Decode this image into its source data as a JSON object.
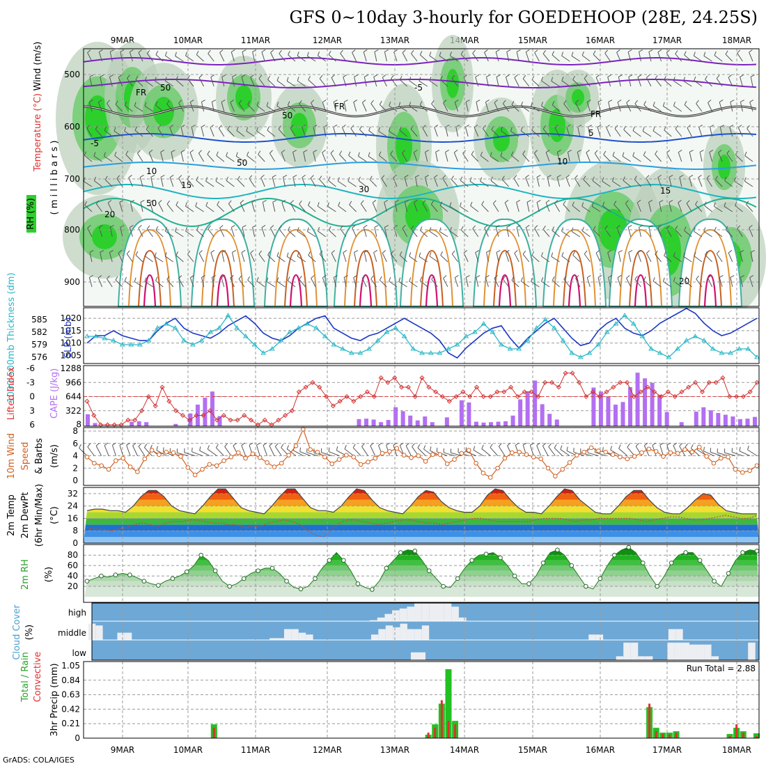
{
  "title": "GFS 0~10day 3-hourly for GOEDEHOOP (28E, 24.25S)",
  "footer": "GrADS: COLA/IGES",
  "run_total": "Run Total = 2.88",
  "colors": {
    "rh": "#2dcf2d",
    "temp": "#7b22c0",
    "wind": "#d06020",
    "cape": "#b36ff2",
    "slp": "#1a35c6",
    "thick": "#29b8c8",
    "precip": "#22c022",
    "conv": "#e03030",
    "cloud": "#6ea8d6"
  },
  "chart_data": [
    {
      "type": "heatmap",
      "name": "upper",
      "x": [
        "9MAR",
        "10MAR",
        "11MAR",
        "12MAR",
        "13MAR",
        "14MAR",
        "15MAR",
        "16MAR",
        "17MAR",
        "18MAR"
      ],
      "ylabel": [
        "Wind (m/s)",
        "Temperature (°C)",
        "RH (%)",
        "( m i l l i b a r s )"
      ],
      "yticks": [
        "500",
        "600",
        "700",
        "800",
        "900"
      ],
      "contour_labels": [
        "FR",
        "FR",
        "FR",
        "-5",
        "5",
        "-5",
        "10",
        "10",
        "15",
        "15",
        "20",
        "20",
        "50",
        "50",
        "50",
        "30",
        "50"
      ]
    },
    {
      "type": "line",
      "name": "slp",
      "ylabel_left": "1000-500mb Thickness (dm)",
      "ylabel_right": "SLP (mb)",
      "yticks_left": [
        "585",
        "582",
        "579",
        "576"
      ],
      "yticks_right": [
        "1020",
        "1015",
        "1010",
        "1005"
      ],
      "series": [
        {
          "name": "SLP",
          "values": [
            1010,
            1013,
            1013,
            1015,
            1013,
            1012,
            1011,
            1011,
            1015,
            1018,
            1020,
            1016,
            1014,
            1013,
            1012,
            1014,
            1017,
            1019,
            1021,
            1018,
            1014,
            1012,
            1011,
            1013,
            1016,
            1018,
            1020,
            1021,
            1016,
            1014,
            1012,
            1011,
            1013,
            1014,
            1016,
            1018,
            1020,
            1018,
            1016,
            1014,
            1011,
            1006,
            1004,
            1008,
            1011,
            1014,
            1016,
            1017,
            1012,
            1008,
            1012,
            1015,
            1018,
            1020,
            1016,
            1012,
            1009,
            1010,
            1015,
            1018,
            1020,
            1016,
            1014,
            1013,
            1015,
            1018,
            1020,
            1022,
            1024,
            1022,
            1018,
            1015,
            1013,
            1014,
            1016,
            1018,
            1020
          ]
        },
        {
          "name": "Thickness",
          "values": [
            581,
            581,
            580.5,
            580,
            579,
            579,
            579,
            580,
            583,
            584,
            583,
            580,
            579,
            580,
            582,
            583,
            586,
            583,
            581,
            579,
            577,
            578,
            580,
            582,
            583,
            584,
            583,
            581,
            579,
            578,
            577,
            577,
            578,
            580,
            582,
            583,
            581,
            578,
            577,
            577,
            577,
            578,
            579,
            581,
            582,
            584,
            582,
            579,
            578,
            578,
            580,
            583,
            585,
            583,
            580,
            577,
            576,
            577,
            579,
            582,
            584,
            586,
            584,
            581,
            578,
            577,
            576,
            578,
            580,
            581,
            580,
            578,
            577,
            577,
            578,
            578,
            576
          ]
        }
      ]
    },
    {
      "type": "bar",
      "name": "cape",
      "ylabel_left": "Lifted Index",
      "ylabel_right": "CAPE (J/kg)",
      "yticks_left": [
        "-6",
        "-3",
        "0",
        "3",
        "6"
      ],
      "yticks_right": [
        "1288",
        "966",
        "644",
        "322",
        "8"
      ],
      "cape": [
        240,
        40,
        0,
        0,
        0,
        0,
        70,
        80,
        60,
        0,
        0,
        0,
        20,
        0,
        260,
        460,
        620,
        760,
        200,
        0,
        0,
        0,
        0,
        0,
        0,
        0,
        0,
        0,
        0,
        0,
        0,
        0,
        0,
        0,
        0,
        0,
        0,
        130,
        140,
        120,
        60,
        110,
        400,
        310,
        210,
        100,
        190,
        60,
        0,
        170,
        0,
        560,
        510,
        70,
        50,
        60,
        70,
        80,
        210,
        580,
        760,
        1010,
        470,
        250,
        120,
        0,
        0,
        0,
        0,
        850,
        760,
        640,
        460,
        520,
        860,
        1190,
        1060,
        960,
        680,
        290,
        0,
        60,
        0,
        300,
        400,
        330,
        270,
        230,
        190,
        130,
        140,
        180
      ],
      "li": [
        1,
        4,
        6,
        6,
        6,
        6,
        5,
        5,
        3,
        0,
        2,
        -2,
        1,
        3,
        4,
        5,
        4,
        4,
        3,
        5,
        4,
        5,
        5,
        4,
        5,
        6,
        5,
        6,
        5,
        4,
        3,
        -1,
        -2,
        -3,
        -2,
        0,
        2,
        1,
        0,
        1,
        0,
        -1,
        0,
        -4,
        -3,
        -4,
        -2,
        -2,
        0,
        -4,
        -2,
        -1,
        0,
        1,
        0,
        -1,
        0,
        -2,
        0,
        0,
        -1,
        -1,
        -2,
        0,
        -1,
        -1,
        0,
        -3,
        -3,
        -2,
        -5,
        -5,
        -3,
        0,
        -1,
        0,
        -1,
        -2,
        -3,
        -3,
        0,
        -1,
        -2,
        -1,
        0,
        -1,
        0,
        -1,
        -2,
        -3,
        -1,
        -3,
        -3,
        -4,
        0,
        0,
        0,
        -1,
        -3
      ]
    },
    {
      "type": "line",
      "name": "wind",
      "ylabel": [
        "10m Wind",
        "Speed",
        "& Barbs",
        "(m/s)"
      ],
      "yticks": [
        "8",
        "6",
        "4",
        "2",
        "0"
      ],
      "values": [
        3.8,
        2.8,
        2.4,
        1.8,
        3.2,
        3.6,
        2.2,
        1.4,
        3.5,
        4.9,
        4.2,
        4.6,
        4.5,
        3.9,
        2.1,
        0.9,
        1.8,
        2.6,
        2.4,
        3.2,
        3.8,
        4.5,
        3.6,
        4.3,
        3.7,
        2.9,
        2.2,
        2.8,
        4.1,
        5.6,
        8.3,
        5.0,
        4.6,
        3.8,
        2.7,
        3.4,
        4.1,
        3.8,
        2.6,
        3.0,
        3.6,
        4.4,
        4.7,
        5.2,
        4.1,
        3.7,
        4.0,
        3.1,
        4.2,
        4.2,
        2.7,
        3.4,
        4.4,
        4.9,
        2.8,
        1.2,
        0.5,
        2.0,
        3.6,
        4.5,
        4.6,
        4.2,
        3.8,
        3.5,
        2.0,
        0.7,
        1.8,
        2.9,
        4.1,
        4.6,
        5.3,
        4.8,
        4.6,
        4.2,
        3.8,
        3.5,
        3.9,
        4.5,
        5.1,
        4.7,
        3.9,
        4.5,
        4.4,
        5.0,
        4.6,
        5.4,
        3.9,
        2.8,
        3.6,
        3.8,
        1.8,
        1.3,
        1.6,
        2.4
      ]
    },
    {
      "type": "area",
      "name": "temp",
      "ylabel": [
        "2m Temp",
        "2m DewPt",
        "(6hr Min/Max)",
        "(°C)"
      ],
      "yticks": [
        "32",
        "24",
        "16",
        "8",
        "0"
      ],
      "temp": [
        21,
        22,
        22,
        21,
        21,
        20,
        24,
        30,
        34,
        34,
        30,
        24,
        21,
        20,
        19,
        24,
        30,
        35,
        35,
        29,
        23,
        21,
        20,
        19,
        24,
        30,
        35,
        35,
        29,
        23,
        21,
        21,
        20,
        24,
        30,
        35,
        34,
        28,
        23,
        21,
        20,
        19,
        24,
        30,
        34,
        33,
        27,
        23,
        21,
        20,
        20,
        24,
        31,
        35,
        34,
        28,
        23,
        20,
        20,
        19,
        24,
        30,
        35,
        34,
        28,
        24,
        20,
        19,
        19,
        24,
        30,
        34,
        34,
        28,
        23,
        20,
        19,
        19,
        23,
        28,
        32,
        31,
        25,
        21,
        20,
        19,
        19,
        19
      ],
      "dew": [
        10,
        9,
        9,
        8,
        9,
        10,
        12,
        13,
        12,
        11,
        13,
        14,
        14,
        15,
        15,
        14,
        13,
        13,
        12,
        12,
        10,
        11,
        11,
        13,
        14,
        15,
        14,
        12,
        8,
        5,
        4,
        9,
        13,
        15,
        15,
        14,
        13,
        12,
        13,
        14,
        15,
        15,
        14,
        13,
        13,
        12,
        13,
        14,
        15,
        16,
        16,
        15,
        14,
        14,
        14,
        14,
        14,
        15,
        16,
        16,
        16,
        15,
        14,
        15,
        15,
        16,
        16,
        16,
        16,
        16,
        15,
        14,
        15,
        16,
        17,
        17,
        16,
        15,
        15,
        16,
        17,
        18,
        17,
        16,
        16,
        18
      ]
    },
    {
      "type": "area",
      "name": "rh",
      "ylabel": [
        "2m RH",
        "(%)"
      ],
      "yticks": [
        "80",
        "60",
        "40",
        "20"
      ],
      "values": [
        30,
        35,
        40,
        38,
        42,
        45,
        42,
        37,
        30,
        25,
        22,
        30,
        35,
        40,
        48,
        60,
        80,
        70,
        50,
        30,
        20,
        25,
        35,
        45,
        50,
        55,
        55,
        45,
        30,
        18,
        15,
        20,
        35,
        55,
        70,
        85,
        70,
        50,
        25,
        18,
        14,
        30,
        55,
        70,
        85,
        90,
        88,
        70,
        50,
        35,
        20,
        18,
        35,
        55,
        70,
        80,
        82,
        85,
        75,
        60,
        40,
        25,
        25,
        40,
        65,
        85,
        90,
        80,
        60,
        40,
        20,
        15,
        35,
        60,
        80,
        90,
        95,
        85,
        65,
        40,
        20,
        40,
        65,
        80,
        85,
        85,
        70,
        50,
        30,
        20,
        45,
        70,
        85,
        90,
        88
      ]
    },
    {
      "type": "heatmap",
      "name": "cloud",
      "ylabel": [
        "Cloud Cover",
        "(%)"
      ],
      "row_labels": [
        "high",
        "middle",
        "low"
      ],
      "high": [
        0,
        0,
        0,
        0,
        0,
        0,
        0,
        0,
        0,
        0,
        0,
        0,
        0,
        0,
        0,
        0,
        0,
        0,
        0,
        0,
        0,
        0,
        0,
        0,
        0,
        0,
        0,
        0,
        0,
        0,
        0,
        0,
        0,
        0,
        0,
        0,
        0,
        0,
        5,
        20,
        40,
        60,
        70,
        80,
        100,
        100,
        100,
        100,
        100,
        80,
        20,
        0,
        0,
        0,
        0,
        0,
        0,
        0,
        0,
        0,
        0,
        0,
        0,
        0,
        0,
        0,
        0,
        0,
        0,
        0,
        0,
        0,
        0,
        0,
        0,
        0,
        0,
        0,
        0,
        0,
        0,
        0,
        0,
        0,
        0,
        0,
        0,
        0,
        0,
        0,
        0
      ],
      "middle": [
        90,
        80,
        0,
        0,
        40,
        40,
        0,
        0,
        0,
        0,
        0,
        0,
        0,
        0,
        0,
        0,
        0,
        0,
        0,
        0,
        0,
        0,
        0,
        0,
        0,
        10,
        10,
        60,
        60,
        40,
        30,
        0,
        0,
        0,
        0,
        0,
        0,
        0,
        0,
        30,
        60,
        80,
        70,
        90,
        60,
        60,
        80,
        0,
        0,
        0,
        0,
        0,
        0,
        0,
        0,
        0,
        0,
        0,
        0,
        0,
        0,
        0,
        0,
        0,
        0,
        0,
        0,
        0,
        0,
        30,
        30,
        0,
        0,
        0,
        0,
        0,
        0,
        0,
        0,
        0,
        60,
        60,
        0,
        0,
        0,
        0,
        0,
        0,
        0,
        0,
        0,
        0,
        0
      ],
      "low": [
        0,
        0,
        0,
        0,
        0,
        0,
        0,
        0,
        0,
        0,
        0,
        0,
        0,
        0,
        0,
        0,
        0,
        0,
        0,
        0,
        0,
        0,
        0,
        0,
        0,
        0,
        0,
        0,
        0,
        0,
        0,
        0,
        0,
        0,
        0,
        0,
        0,
        0,
        0,
        0,
        0,
        0,
        0,
        0,
        40,
        40,
        0,
        0,
        0,
        0,
        0,
        0,
        0,
        0,
        0,
        0,
        0,
        0,
        0,
        0,
        0,
        0,
        0,
        0,
        0,
        0,
        0,
        0,
        0,
        0,
        0,
        0,
        20,
        90,
        90,
        20,
        20,
        0,
        0,
        90,
        90,
        90,
        80,
        80,
        80,
        20,
        0,
        0,
        0,
        0,
        90,
        0
      ]
    },
    {
      "type": "bar",
      "name": "precip",
      "ylabel": [
        "Total / Rain",
        "Convective",
        "3hr Precip (mm)"
      ],
      "yticks": [
        "1.05",
        "0.84",
        "0.63",
        "0.42",
        "0.21",
        "0"
      ],
      "total": [
        0,
        0,
        0,
        0,
        0,
        0,
        0,
        0,
        0,
        0,
        0,
        0,
        0,
        0,
        0,
        0,
        0,
        0,
        0,
        0.2,
        0,
        0,
        0,
        0,
        0,
        0,
        0,
        0,
        0,
        0,
        0,
        0,
        0,
        0,
        0,
        0,
        0,
        0,
        0,
        0,
        0,
        0,
        0,
        0,
        0,
        0,
        0,
        0,
        0,
        0,
        0,
        0.05,
        0.2,
        0.5,
        1.0,
        0.25,
        0,
        0,
        0,
        0,
        0,
        0,
        0,
        0,
        0,
        0,
        0,
        0,
        0,
        0,
        0,
        0,
        0,
        0,
        0,
        0,
        0,
        0,
        0,
        0,
        0,
        0,
        0,
        0,
        0.45,
        0.15,
        0.08,
        0.08,
        0.1,
        0,
        0,
        0,
        0,
        0,
        0,
        0,
        0.06,
        0.15,
        0.1,
        0,
        0.07
      ],
      "conv": [
        0,
        0,
        0,
        0,
        0,
        0,
        0,
        0,
        0,
        0,
        0,
        0,
        0,
        0,
        0,
        0,
        0,
        0,
        0,
        0.15,
        0,
        0,
        0,
        0,
        0,
        0,
        0,
        0,
        0,
        0,
        0,
        0,
        0,
        0,
        0,
        0,
        0,
        0,
        0,
        0,
        0,
        0,
        0,
        0,
        0,
        0,
        0,
        0,
        0,
        0,
        0,
        0.08,
        0.15,
        0.55,
        0.25,
        0.2,
        0,
        0,
        0,
        0,
        0,
        0,
        0,
        0,
        0,
        0,
        0,
        0,
        0,
        0,
        0,
        0,
        0,
        0,
        0,
        0,
        0,
        0,
        0,
        0,
        0,
        0,
        0,
        0,
        0.5,
        0.1,
        0.06,
        0.05,
        0.08,
        0,
        0,
        0,
        0,
        0,
        0,
        0,
        0.03,
        0.2,
        0.08,
        0,
        0.03
      ]
    }
  ]
}
